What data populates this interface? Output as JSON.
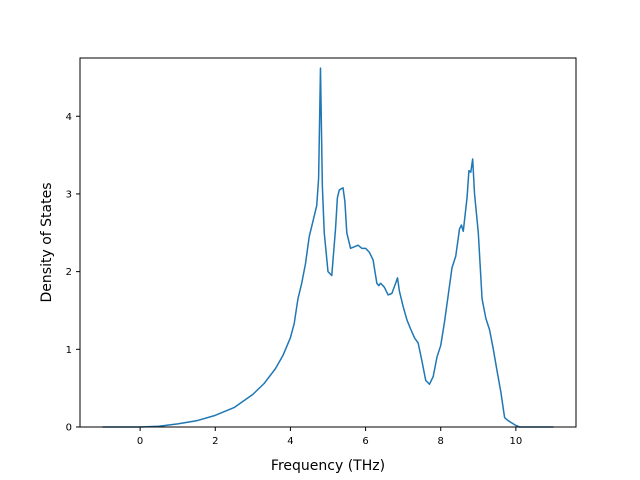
{
  "chart_data": {
    "type": "line",
    "title": "",
    "xlabel": "Frequency (THz)",
    "ylabel": "Density of States",
    "xlim": [
      -1.6,
      11.6
    ],
    "ylim": [
      0,
      4.75
    ],
    "xticks": [
      0,
      2,
      4,
      6,
      8,
      10
    ],
    "yticks": [
      0,
      1,
      2,
      3,
      4
    ],
    "grid": false,
    "legend": "none",
    "colors": {
      "line": "#1f77b4",
      "axes": "#000000",
      "background": "#ffffff"
    },
    "series": [
      {
        "x": [
          -1.0,
          -0.5,
          0.0,
          0.5,
          1.0,
          1.5,
          2.0,
          2.5,
          3.0,
          3.3,
          3.6,
          3.8,
          4.0,
          4.1,
          4.2,
          4.3,
          4.4,
          4.5,
          4.6,
          4.7,
          4.75,
          4.8,
          4.85,
          4.9,
          5.0,
          5.1,
          5.2,
          5.25,
          5.3,
          5.4,
          5.45,
          5.5,
          5.6,
          5.7,
          5.8,
          5.9,
          6.0,
          6.1,
          6.2,
          6.3,
          6.35,
          6.4,
          6.5,
          6.6,
          6.7,
          6.8,
          6.85,
          6.9,
          7.0,
          7.1,
          7.2,
          7.3,
          7.4,
          7.5,
          7.6,
          7.7,
          7.8,
          7.9,
          8.0,
          8.1,
          8.2,
          8.3,
          8.4,
          8.5,
          8.55,
          8.6,
          8.7,
          8.75,
          8.8,
          8.85,
          8.9,
          9.0,
          9.1,
          9.2,
          9.3,
          9.4,
          9.5,
          9.6,
          9.7,
          9.8,
          9.9,
          10.0,
          10.1,
          10.5,
          11.0
        ],
        "y": [
          0.0,
          0.0,
          0.0,
          0.01,
          0.04,
          0.08,
          0.15,
          0.25,
          0.42,
          0.56,
          0.75,
          0.92,
          1.15,
          1.33,
          1.65,
          1.85,
          2.1,
          2.45,
          2.65,
          2.85,
          3.2,
          4.62,
          3.1,
          2.5,
          2.0,
          1.95,
          2.55,
          2.95,
          3.05,
          3.08,
          2.9,
          2.5,
          2.3,
          2.32,
          2.34,
          2.3,
          2.3,
          2.25,
          2.15,
          1.85,
          1.82,
          1.85,
          1.8,
          1.7,
          1.72,
          1.85,
          1.92,
          1.75,
          1.55,
          1.38,
          1.26,
          1.15,
          1.08,
          0.85,
          0.6,
          0.55,
          0.65,
          0.9,
          1.05,
          1.35,
          1.7,
          2.05,
          2.2,
          2.55,
          2.6,
          2.52,
          2.95,
          3.3,
          3.28,
          3.45,
          3.0,
          2.5,
          1.65,
          1.4,
          1.25,
          1.0,
          0.72,
          0.45,
          0.12,
          0.08,
          0.05,
          0.02,
          0.0,
          0.0,
          0.0
        ]
      }
    ]
  }
}
